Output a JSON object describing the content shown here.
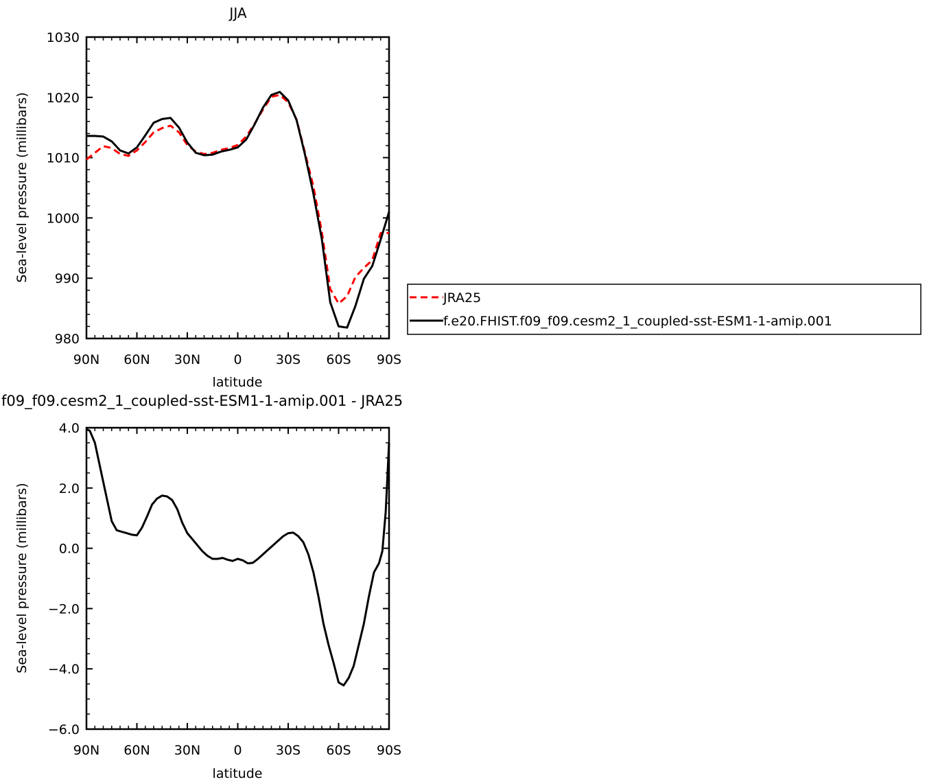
{
  "chart_data": [
    {
      "type": "line",
      "title": "JJA",
      "xlabel": "latitude",
      "ylabel": "Sea-level pressure (millibars)",
      "xlim": [
        90,
        -90
      ],
      "ylim": [
        980,
        1030
      ],
      "xticks": [
        90,
        60,
        30,
        0,
        -30,
        -60,
        -90
      ],
      "xtick_labels": [
        "90N",
        "60N",
        "30N",
        "0",
        "30S",
        "60S",
        "90S"
      ],
      "yticks": [
        980,
        990,
        1000,
        1010,
        1020,
        1030
      ],
      "ytick_labels": [
        "980",
        "990",
        "1000",
        "1010",
        "1020",
        "1030"
      ],
      "legend_position": "right",
      "series": [
        {
          "name": "JRA25",
          "color": "#ff0000",
          "dash": "dashed",
          "x": [
            90,
            85,
            80,
            75,
            70,
            65,
            60,
            55,
            50,
            45,
            40,
            35,
            30,
            25,
            20,
            15,
            10,
            5,
            0,
            -5,
            -10,
            -15,
            -20,
            -25,
            -30,
            -35,
            -40,
            -45,
            -50,
            -55,
            -60,
            -65,
            -70,
            -75,
            -80,
            -85,
            -90
          ],
          "values": [
            1009.7,
            1010.8,
            1011.9,
            1011.6,
            1010.6,
            1010.3,
            1011.2,
            1012.6,
            1014.2,
            1014.9,
            1015.3,
            1014.2,
            1012.1,
            1011,
            1010.6,
            1010.8,
            1011.3,
            1011.6,
            1012.1,
            1013.5,
            1015.6,
            1018,
            1020.1,
            1020.4,
            1019.2,
            1016.3,
            1010.8,
            1005.2,
            997.7,
            988.2,
            985.8,
            987,
            990.2,
            991.7,
            993,
            997.5,
            997.5
          ]
        },
        {
          "name": "f.e20.FHIST.f09_f09.cesm2_1_coupled-sst-ESM1-1-amip.001",
          "color": "#000000",
          "dash": "solid",
          "x": [
            90,
            85,
            80,
            75,
            70,
            65,
            60,
            55,
            50,
            45,
            40,
            35,
            30,
            25,
            20,
            15,
            10,
            5,
            0,
            -5,
            -10,
            -15,
            -20,
            -25,
            -30,
            -35,
            -40,
            -45,
            -50,
            -55,
            -60,
            -65,
            -70,
            -75,
            -80,
            -85,
            -90
          ],
          "values": [
            1013.6,
            1013.6,
            1013.5,
            1012.7,
            1011.2,
            1010.7,
            1011.7,
            1013.7,
            1015.8,
            1016.4,
            1016.6,
            1015,
            1012.5,
            1010.8,
            1010.4,
            1010.5,
            1011,
            1011.3,
            1011.7,
            1013,
            1015.5,
            1018.3,
            1020.4,
            1020.9,
            1019.5,
            1016.2,
            1010.5,
            1004,
            996.5,
            986,
            982,
            981.8,
            985.4,
            989.9,
            992,
            996.4,
            1001
          ]
        }
      ]
    },
    {
      "type": "line",
      "title": "f09_f09.cesm2_1_coupled-sst-ESM1-1-amip.001 - JRA25",
      "xlabel": "latitude",
      "ylabel": "Sea-level pressure (millibars)",
      "xlim": [
        90,
        -90
      ],
      "ylim": [
        -6,
        4
      ],
      "xticks": [
        90,
        60,
        30,
        0,
        -30,
        -60,
        -90
      ],
      "xtick_labels": [
        "90N",
        "60N",
        "30N",
        "0",
        "30S",
        "60S",
        "90S"
      ],
      "yticks": [
        -6,
        -4,
        -2,
        0,
        2,
        4
      ],
      "ytick_labels": [
        "-6.0",
        "-4.0",
        "-2.0",
        "0.0",
        "2.0",
        "4.0"
      ],
      "series": [
        {
          "color": "#000000",
          "dash": "solid",
          "x": [
            90,
            88,
            85,
            80,
            75,
            72,
            69,
            66,
            63,
            60,
            57,
            54,
            51,
            48,
            45,
            42,
            39,
            36,
            33,
            30,
            27,
            24,
            21,
            18,
            15,
            12,
            9,
            6,
            3,
            0,
            -3,
            -6,
            -9,
            -12,
            -15,
            -18,
            -21,
            -24,
            -27,
            -30,
            -33,
            -36,
            -39,
            -42,
            -45,
            -48,
            -51,
            -54,
            -57,
            -60,
            -63,
            -66,
            -69,
            -72,
            -75,
            -78,
            -81,
            -84,
            -86,
            -88,
            -90
          ],
          "values": [
            3.95,
            3.9,
            3.5,
            2.2,
            0.9,
            0.6,
            0.55,
            0.5,
            0.45,
            0.43,
            0.68,
            1.05,
            1.45,
            1.65,
            1.75,
            1.72,
            1.6,
            1.3,
            0.85,
            0.5,
            0.3,
            0.1,
            -0.1,
            -0.25,
            -0.35,
            -0.35,
            -0.32,
            -0.38,
            -0.42,
            -0.35,
            -0.4,
            -0.5,
            -0.48,
            -0.35,
            -0.2,
            -0.05,
            0.1,
            0.25,
            0.4,
            0.5,
            0.52,
            0.4,
            0.2,
            -0.2,
            -0.8,
            -1.6,
            -2.5,
            -3.2,
            -3.8,
            -4.45,
            -4.55,
            -4.3,
            -3.9,
            -3.2,
            -2.5,
            -1.6,
            -0.8,
            -0.5,
            -0.1,
            1.2,
            3.5
          ]
        }
      ]
    }
  ]
}
